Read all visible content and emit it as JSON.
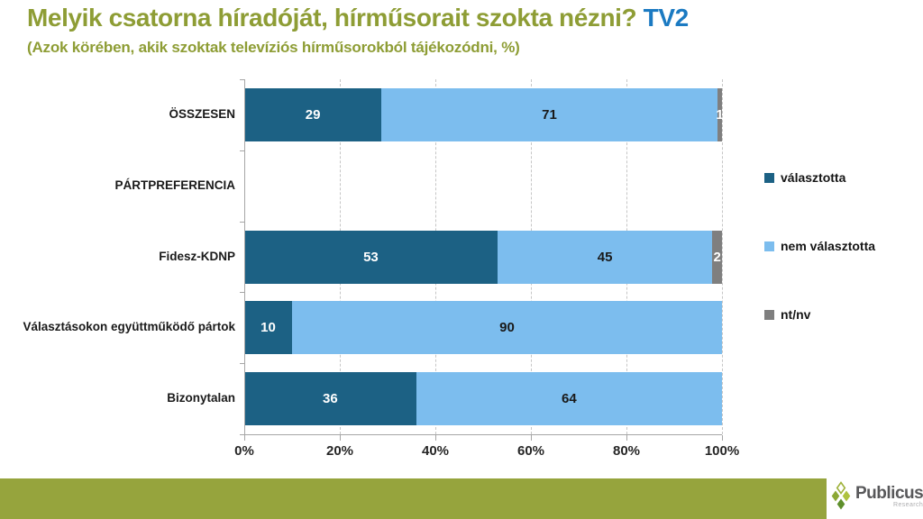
{
  "title": {
    "main": "Melyik csatorna híradóját, hírműsorait szokta nézni?",
    "highlight": "TV2",
    "subtitle": "(Azok körében, akik szoktak televíziós hírműsorokból tájékozódni, %)"
  },
  "colors": {
    "title_green": "#8E9D35",
    "highlight_blue": "#1B7AC2",
    "footer_green": "#96A43D",
    "axis_gray": "#A6A6A6",
    "gridline_gray": "#C6C6C6",
    "series_dark_blue": "#1C6184",
    "series_light_blue": "#7CBDEE",
    "series_gray": "#7F7F7F"
  },
  "chart_data": {
    "type": "bar",
    "orientation": "horizontal",
    "stacked": true,
    "unit": "%",
    "categories": [
      "ÖSSZESEN",
      "PÁRTPREFERENCIA",
      "Fidesz-KDNP",
      "Választásokon együttműködő pártok",
      "Bizonytalan"
    ],
    "series": [
      {
        "name": "választotta",
        "color": "#1C6184",
        "label_color": "#FFFFFF",
        "values": [
          29,
          null,
          53,
          10,
          36
        ]
      },
      {
        "name": "nem választotta",
        "color": "#7CBDEE",
        "label_color": "#1A1A1A",
        "values": [
          71,
          null,
          45,
          90,
          64
        ]
      },
      {
        "name": "nt/nv",
        "color": "#7F7F7F",
        "label_color": "#FFFFFF",
        "values": [
          1,
          null,
          2,
          0,
          0
        ]
      }
    ],
    "x_ticks": [
      "0%",
      "20%",
      "40%",
      "60%",
      "80%",
      "100%"
    ],
    "xlim": [
      0,
      100
    ],
    "grid": "vertical-dashed",
    "legend_position": "right"
  },
  "footer": {
    "logo_text": "Publicus",
    "logo_subtext": "Research"
  }
}
